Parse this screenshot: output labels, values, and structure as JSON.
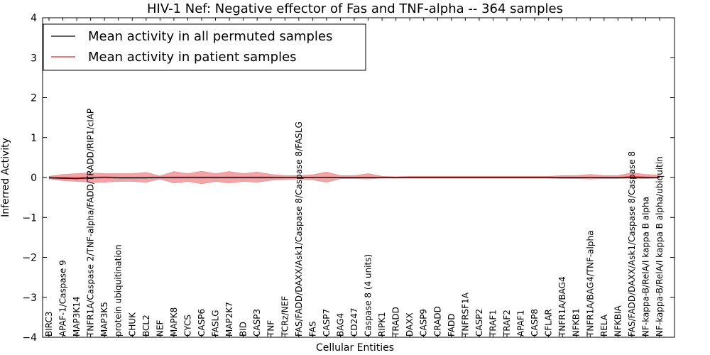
{
  "chart_data": {
    "type": "line",
    "title": "HIV-1 Nef: Negative effector of Fas and TNF-alpha -- 364 samples",
    "xlabel": "Cellular Entities",
    "ylabel": "Inferred Activity",
    "ylim": [
      -4,
      4
    ],
    "yticks": [
      -4,
      -3,
      -2,
      -1,
      0,
      1,
      2,
      3,
      4
    ],
    "ytick_labels": [
      "−4",
      "−3",
      "−2",
      "−1",
      "0",
      "1",
      "2",
      "3",
      "4"
    ],
    "legend_position": "top-left",
    "categories": [
      "BIRC3",
      "APAF-1/Caspase 9",
      "MAP3K14",
      "TNFR1A/Caspase 2/TNF-alpha/FADD/TRADD/RIP1/cIAP",
      "MAP3K5",
      "protein ubiquitination",
      "CHUK",
      "BCL2",
      "NEF",
      "MAPK8",
      "CYCS",
      "CASP6",
      "FASLG",
      "MAP2K7",
      "BID",
      "CASP3",
      "TNF",
      "TCRz/NEF",
      "FAS/FADD/DAXX/Ask1/Caspase 8/Caspase 8/FASLG",
      "FAS",
      "CASP7",
      "BAG4",
      "CD247",
      "Caspase 8 (4 units)",
      "RIPK1",
      "TRADD",
      "DAXX",
      "CASP9",
      "CRADD",
      "FADD",
      "TNFRSF1A",
      "CASP2",
      "TRAF1",
      "TRAF2",
      "APAF1",
      "CASP8",
      "CFLAR",
      "TNFR1A/BAG4",
      "NFKB1",
      "TNFR1A/BAG4/TNF-alpha",
      "RELA",
      "NFKBIA",
      "FAS/FADD/DAXX/Ask1/Caspase 8/Caspase 8",
      "NF-kappa-B/RelA/I kappa B alpha",
      "NF-kappa-B/RelA/I kappa B alpha/ubiquitin"
    ],
    "series": [
      {
        "name": "Mean activity in all permuted samples",
        "color": "#000000",
        "values": [
          -0.01,
          -0.02,
          -0.03,
          -0.01,
          0.01,
          -0.01,
          -0.01,
          -0.01,
          0.0,
          0.0,
          0.0,
          0.0,
          0.0,
          0.0,
          0.0,
          0.0,
          0.0,
          0.0,
          0.0,
          0.0,
          0.0,
          0.0,
          0.0,
          0.0,
          0.0,
          0.0,
          0.0,
          0.0,
          0.0,
          0.0,
          0.0,
          0.0,
          0.0,
          0.0,
          0.0,
          0.0,
          0.0,
          0.0,
          0.0,
          0.0,
          0.0,
          0.0,
          0.0,
          0.0,
          0.0
        ],
        "band_low": [
          -0.05,
          -0.05,
          -0.06,
          -0.04,
          -0.03,
          -0.04,
          -0.04,
          -0.03,
          -0.03,
          -0.03,
          -0.03,
          -0.03,
          -0.03,
          -0.03,
          -0.03,
          -0.03,
          -0.03,
          -0.02,
          -0.02,
          -0.02,
          -0.02,
          -0.02,
          -0.02,
          -0.02,
          -0.02,
          -0.02,
          -0.02,
          -0.02,
          -0.02,
          -0.02,
          -0.02,
          -0.02,
          -0.02,
          -0.02,
          -0.02,
          -0.02,
          -0.02,
          -0.02,
          -0.02,
          -0.02,
          -0.02,
          -0.02,
          -0.02,
          -0.02,
          -0.02
        ],
        "band_high": [
          0.03,
          0.01,
          0.0,
          0.02,
          0.04,
          0.02,
          0.02,
          0.02,
          0.03,
          0.03,
          0.03,
          0.03,
          0.03,
          0.03,
          0.03,
          0.03,
          0.03,
          0.02,
          0.02,
          0.02,
          0.02,
          0.02,
          0.02,
          0.02,
          0.02,
          0.02,
          0.02,
          0.02,
          0.02,
          0.02,
          0.02,
          0.02,
          0.02,
          0.02,
          0.02,
          0.02,
          0.02,
          0.02,
          0.02,
          0.02,
          0.02,
          0.02,
          0.02,
          0.02,
          0.02
        ]
      },
      {
        "name": "Mean activity in patient samples",
        "color": "#d62728",
        "band_color": "#e8595c",
        "values": [
          0.0,
          0.0,
          0.0,
          0.0,
          0.0,
          0.0,
          0.0,
          0.0,
          0.0,
          0.0,
          0.0,
          0.0,
          0.0,
          0.0,
          0.0,
          0.0,
          0.0,
          0.0,
          0.0,
          0.0,
          0.0,
          0.0,
          0.0,
          0.0,
          0.0,
          0.0,
          0.0,
          0.0,
          0.0,
          0.0,
          0.0,
          0.0,
          0.0,
          0.0,
          0.0,
          0.0,
          0.0,
          0.0,
          0.0,
          0.0,
          0.0,
          0.0,
          0.02,
          0.01,
          0.0
        ],
        "band_low": [
          -0.03,
          -0.08,
          -0.1,
          -0.12,
          -0.12,
          -0.1,
          -0.1,
          -0.12,
          -0.04,
          -0.14,
          -0.1,
          -0.16,
          -0.1,
          -0.14,
          -0.1,
          -0.12,
          -0.07,
          -0.05,
          -0.04,
          -0.06,
          -0.12,
          -0.03,
          -0.03,
          -0.04,
          -0.02,
          -0.02,
          -0.02,
          -0.02,
          -0.02,
          -0.02,
          -0.02,
          -0.02,
          -0.02,
          -0.02,
          -0.02,
          -0.02,
          -0.02,
          -0.03,
          -0.03,
          -0.04,
          -0.03,
          -0.03,
          -0.02,
          -0.03,
          -0.02
        ],
        "band_high": [
          0.03,
          0.08,
          0.1,
          0.12,
          0.1,
          0.1,
          0.1,
          0.13,
          0.04,
          0.15,
          0.1,
          0.16,
          0.1,
          0.15,
          0.1,
          0.14,
          0.08,
          0.05,
          0.05,
          0.07,
          0.14,
          0.05,
          0.05,
          0.1,
          0.03,
          0.02,
          0.03,
          0.03,
          0.03,
          0.03,
          0.03,
          0.03,
          0.03,
          0.03,
          0.03,
          0.03,
          0.03,
          0.05,
          0.05,
          0.08,
          0.05,
          0.05,
          0.12,
          0.08,
          0.06
        ]
      }
    ]
  }
}
